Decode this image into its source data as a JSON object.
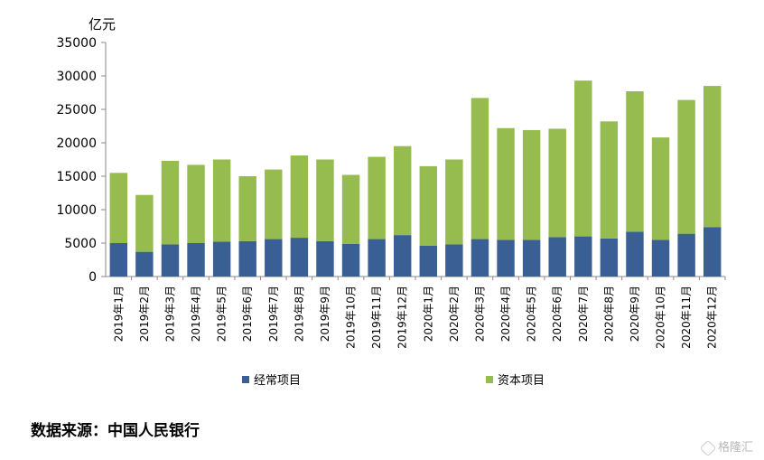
{
  "chart_data": {
    "type": "bar",
    "stacked": true,
    "unit_label": "亿元",
    "categories": [
      "2019年1月",
      "2019年2月",
      "2019年3月",
      "2019年4月",
      "2019年5月",
      "2019年6月",
      "2019年7月",
      "2019年8月",
      "2019年9月",
      "2019年10月",
      "2019年11月",
      "2019年12月",
      "2020年1月",
      "2020年2月",
      "2020年3月",
      "2020年4月",
      "2020年5月",
      "2020年6月",
      "2020年7月",
      "2020年8月",
      "2020年9月",
      "2020年10月",
      "2020年11月",
      "2020年12月"
    ],
    "series": [
      {
        "name": "经常项目",
        "color": "#3a5f94",
        "values": [
          5000,
          3700,
          4800,
          5000,
          5200,
          5300,
          5600,
          5800,
          5300,
          4900,
          5600,
          6200,
          4600,
          4800,
          5600,
          5500,
          5500,
          5900,
          6000,
          5700,
          6700,
          5500,
          6400,
          7400
        ]
      },
      {
        "name": "资本项目",
        "color": "#96bb4f",
        "values": [
          10500,
          8500,
          12500,
          11700,
          12300,
          9700,
          10400,
          12300,
          12200,
          10300,
          12300,
          13300,
          11900,
          12700,
          21100,
          16700,
          16400,
          16200,
          23300,
          17500,
          21000,
          15300,
          20000,
          21100
        ]
      }
    ],
    "ylim": [
      0,
      35000
    ],
    "yticks": [
      "0",
      "5000",
      "10000",
      "15000",
      "20000",
      "25000",
      "30000",
      "35000"
    ],
    "legend_position": "bottom",
    "grid": false
  },
  "source_text": "数据来源：中国人民银行",
  "watermark_text": "格隆汇"
}
